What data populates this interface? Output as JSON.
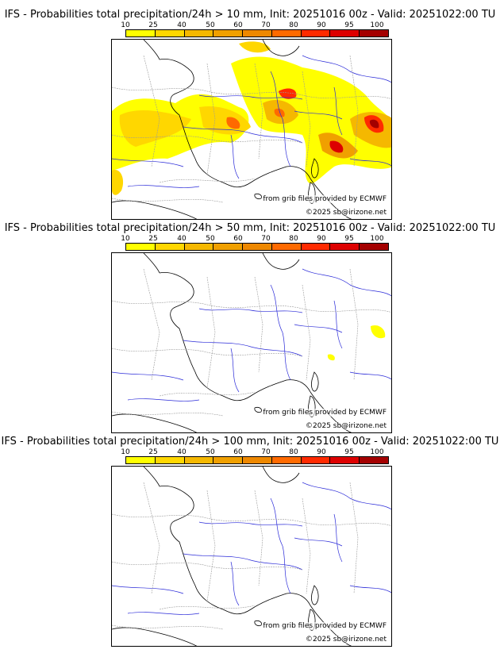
{
  "legend": {
    "labels": [
      "10",
      "25",
      "40",
      "50",
      "60",
      "70",
      "80",
      "90",
      "95",
      "100"
    ],
    "colors": [
      "#ffff00",
      "#ffd700",
      "#f5b800",
      "#f0a000",
      "#ee8800",
      "#ff6a00",
      "#ff2a00",
      "#dd0000",
      "#a40000",
      "#6e0000"
    ]
  },
  "panels": [
    {
      "title": "IFS - Probabilities total precipitation/24h > 10 mm, Init: 20251016 00z - Valid: 20251022:00 TU",
      "credit_source": "from grib files provided by ECMWF",
      "credit_copy": "©2025 sb@irizone.net"
    },
    {
      "title": "IFS - Probabilities total precipitation/24h > 50 mm, Init: 20251016 00z - Valid: 20251022:00 TU",
      "credit_source": "from grib files provided by ECMWF",
      "credit_copy": "©2025 sb@irizone.net"
    },
    {
      "title": "IFS - Probabilities total precipitation/24h > 100 mm, Init: 20251016 00z - Valid: 20251022:00 TU",
      "credit_source": "from grib files provided by ECMWF",
      "credit_copy": "©2025 sb@irizone.net"
    }
  ],
  "colors": {
    "coast": "#000000",
    "rivers": "#2a2ad8",
    "borders": "#9a9a9a"
  }
}
